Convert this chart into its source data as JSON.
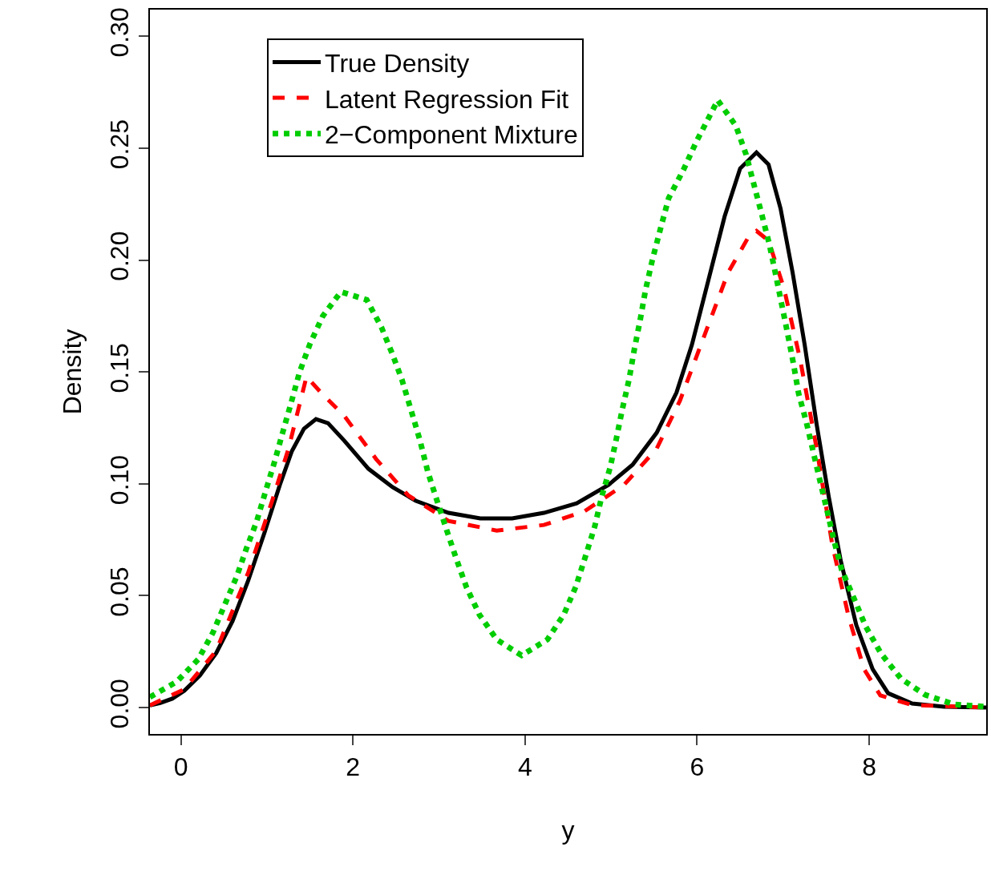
{
  "chart_data": {
    "type": "line",
    "xlabel": "y",
    "ylabel": "Density",
    "xlim": [
      -0.36,
      9.36
    ],
    "ylim": [
      -0.0118,
      0.3119
    ],
    "xticks": [
      0,
      2,
      4,
      6,
      8
    ],
    "yticks": [
      {
        "value": 0,
        "label": "0.00"
      },
      {
        "value": 0.05,
        "label": "0.05"
      },
      {
        "value": 0.1,
        "label": "0.10"
      },
      {
        "value": 0.15,
        "label": "0.15"
      },
      {
        "value": 0.2,
        "label": "0.20"
      },
      {
        "value": 0.25,
        "label": "0.25"
      },
      {
        "value": 0.3,
        "label": "0.30"
      }
    ],
    "legend": "top left",
    "series": [
      {
        "name": "True Density",
        "color": "#000000",
        "line_style": "solid",
        "x": [
          -0.36,
          -0.24,
          -0.1,
          0.04,
          0.22,
          0.41,
          0.6,
          0.78,
          0.97,
          1.15,
          1.29,
          1.43,
          1.57,
          1.71,
          1.9,
          2.18,
          2.46,
          2.73,
          3.11,
          3.48,
          3.85,
          4.22,
          4.6,
          4.97,
          5.25,
          5.53,
          5.76,
          5.94,
          6.13,
          6.32,
          6.5,
          6.69,
          6.83,
          6.97,
          7.11,
          7.25,
          7.39,
          7.53,
          7.67,
          7.85,
          8.04,
          8.22,
          8.5,
          8.87,
          9.36
        ],
        "values": [
          0.001,
          0.002,
          0.004,
          0.0075,
          0.0143,
          0.0243,
          0.0386,
          0.0565,
          0.078,
          0.0995,
          0.1146,
          0.1246,
          0.1289,
          0.1271,
          0.1192,
          0.1067,
          0.0985,
          0.0924,
          0.087,
          0.0845,
          0.0845,
          0.087,
          0.0913,
          0.0995,
          0.1085,
          0.1228,
          0.1407,
          0.1622,
          0.1908,
          0.2195,
          0.2409,
          0.2481,
          0.2427,
          0.223,
          0.1944,
          0.1622,
          0.1264,
          0.0942,
          0.0655,
          0.0369,
          0.0172,
          0.0064,
          0.0018,
          0.0004,
          0.0
        ]
      },
      {
        "name": "Latent Regression Fit",
        "color": "#ff0000",
        "line_style": "dashed",
        "x": [
          -0.36,
          0.04,
          0.41,
          0.78,
          1.06,
          1.25,
          1.46,
          1.62,
          1.9,
          2.27,
          2.64,
          3.11,
          3.67,
          4.22,
          4.69,
          5.15,
          5.53,
          5.8,
          6.08,
          6.36,
          6.6,
          6.69,
          6.83,
          7.01,
          7.2,
          7.39,
          7.57,
          7.76,
          7.94,
          8.13,
          8.5,
          9.36
        ],
        "values": [
          0.001,
          0.0082,
          0.0254,
          0.0601,
          0.0923,
          0.1156,
          0.1479,
          0.1411,
          0.1303,
          0.111,
          0.0949,
          0.0834,
          0.0791,
          0.0816,
          0.0877,
          0.0995,
          0.1157,
          0.1371,
          0.1658,
          0.1944,
          0.2105,
          0.213,
          0.2087,
          0.1873,
          0.1551,
          0.1157,
          0.073,
          0.0408,
          0.0172,
          0.0054,
          0.0011,
          0.0
        ]
      },
      {
        "name": "2−Component Mixture",
        "color": "#00cd00",
        "line_style": "dotted",
        "x": [
          -0.36,
          -0.05,
          0.2,
          0.37,
          0.52,
          0.65,
          0.76,
          0.88,
          0.99,
          1.09,
          1.18,
          1.28,
          1.38,
          1.5,
          1.65,
          1.86,
          2.16,
          2.33,
          2.46,
          2.57,
          2.67,
          2.78,
          2.87,
          2.98,
          3.09,
          3.2,
          3.32,
          3.47,
          3.67,
          3.96,
          4.26,
          4.45,
          4.59,
          4.7,
          4.81,
          4.89,
          4.99,
          5.06,
          5.13,
          5.21,
          5.27,
          5.34,
          5.4,
          5.48,
          5.57,
          5.67,
          5.84,
          5.99,
          6.24,
          6.45,
          6.57,
          6.66,
          6.75,
          6.84,
          6.91,
          6.98,
          7.05,
          7.12,
          7.18,
          7.27,
          7.35,
          7.43,
          7.51,
          7.59,
          7.68,
          7.82,
          7.96,
          8.14,
          8.37,
          8.65,
          8.99,
          9.34
        ],
        "values": [
          0.0047,
          0.0115,
          0.0215,
          0.0333,
          0.0469,
          0.0587,
          0.0709,
          0.0831,
          0.0974,
          0.11,
          0.1225,
          0.136,
          0.15,
          0.1625,
          0.175,
          0.1858,
          0.1822,
          0.17,
          0.1578,
          0.1464,
          0.1336,
          0.1192,
          0.1053,
          0.0921,
          0.0792,
          0.0666,
          0.0537,
          0.0415,
          0.0304,
          0.0233,
          0.0304,
          0.0415,
          0.054,
          0.0673,
          0.0809,
          0.0941,
          0.1074,
          0.1199,
          0.1332,
          0.1468,
          0.16,
          0.1736,
          0.1865,
          0.2001,
          0.2134,
          0.2277,
          0.2402,
          0.2528,
          0.2714,
          0.26,
          0.2471,
          0.2338,
          0.2206,
          0.207,
          0.1941,
          0.1808,
          0.1675,
          0.1536,
          0.1403,
          0.1275,
          0.1142,
          0.101,
          0.0881,
          0.0748,
          0.0616,
          0.0491,
          0.0362,
          0.024,
          0.0129,
          0.0057,
          0.0014,
          0.0004
        ]
      }
    ]
  }
}
